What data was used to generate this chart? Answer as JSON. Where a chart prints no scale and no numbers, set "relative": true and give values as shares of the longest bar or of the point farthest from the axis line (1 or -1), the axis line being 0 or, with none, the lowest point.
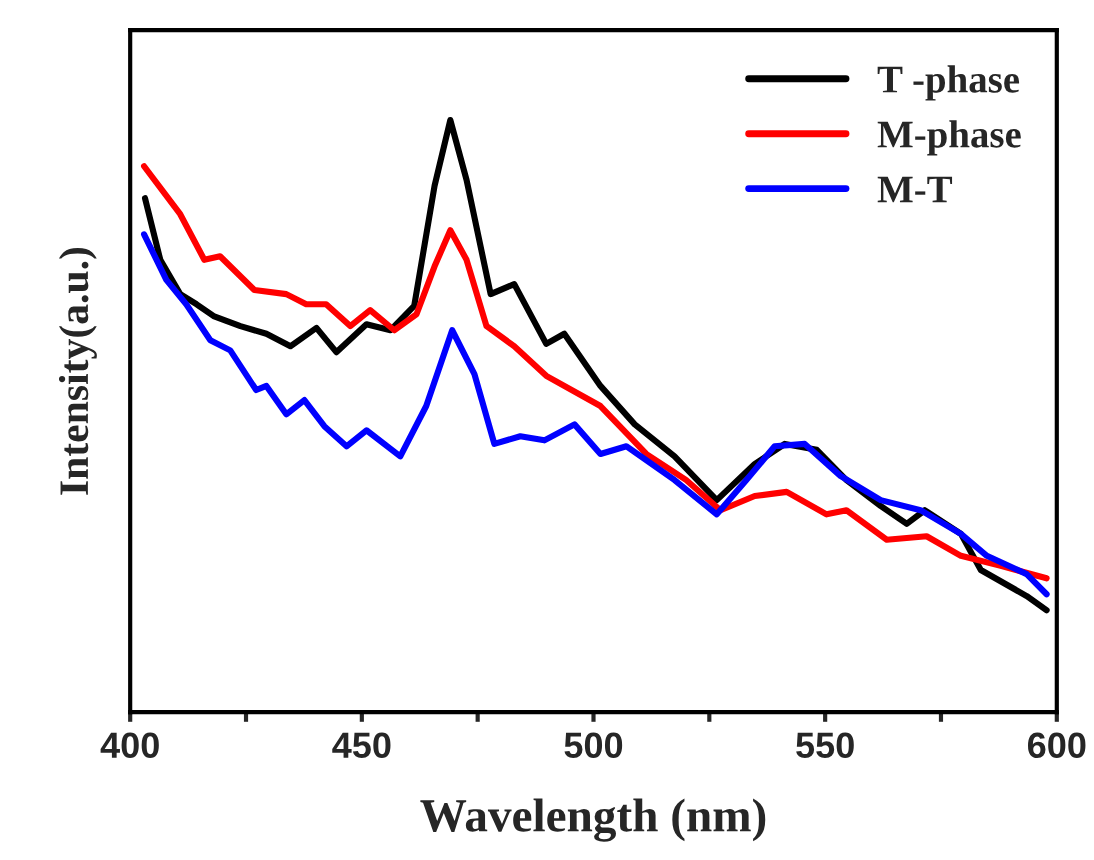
{
  "chart_data": {
    "type": "line",
    "relative": true,
    "xlabel": "Wavelength (nm)",
    "ylabel": "Intensity(a.u.)",
    "xlim": [
      400,
      600
    ],
    "xticks": [
      400,
      {
        "value": 425,
        "label": null
      },
      450,
      {
        "value": 475,
        "label": null
      },
      500,
      {
        "value": 525,
        "label": null
      },
      550,
      {
        "value": 575,
        "label": null
      },
      600
    ],
    "legend": "top right",
    "grid": false,
    "series": [
      {
        "name": "T -phase",
        "color": "#000000",
        "x": [
          403.2,
          406.5,
          410.8,
          414.3,
          418,
          423.8,
          429.4,
          434.6,
          440.2,
          444.5,
          451,
          456.2,
          461.3,
          465.7,
          469.1,
          472.6,
          477.8,
          482.9,
          489.8,
          493.7,
          501.5,
          508.9,
          517.5,
          526.6,
          534.8,
          541.3,
          548.2,
          554.6,
          562,
          567.6,
          571.5,
          579.3,
          583.6,
          593.5,
          597.8
        ],
        "values": [
          0.868,
          0.764,
          0.706,
          0.689,
          0.669,
          0.652,
          0.639,
          0.618,
          0.649,
          0.608,
          0.655,
          0.645,
          0.686,
          0.889,
          1.0,
          0.899,
          0.706,
          0.723,
          0.622,
          0.639,
          0.551,
          0.486,
          0.432,
          0.358,
          0.419,
          0.453,
          0.443,
          0.392,
          0.348,
          0.318,
          0.341,
          0.301,
          0.24,
          0.196,
          0.172
        ]
      },
      {
        "name": "M-phase",
        "color": "#ff0000",
        "x": [
          403,
          410.8,
          416,
          419.4,
          426.8,
          433.7,
          438,
          442.3,
          447.5,
          451.8,
          457,
          461.8,
          465.7,
          469.1,
          472.6,
          476.9,
          482.9,
          489.8,
          501.5,
          511.4,
          520,
          527.4,
          534.8,
          541.7,
          550.3,
          554.6,
          563.3,
          571.9,
          579.3,
          587.9,
          597.8
        ],
        "values": [
          0.922,
          0.841,
          0.764,
          0.77,
          0.713,
          0.706,
          0.689,
          0.689,
          0.652,
          0.679,
          0.645,
          0.672,
          0.753,
          0.814,
          0.764,
          0.652,
          0.618,
          0.568,
          0.517,
          0.436,
          0.392,
          0.341,
          0.365,
          0.372,
          0.334,
          0.341,
          0.291,
          0.297,
          0.264,
          0.247,
          0.226
        ]
      },
      {
        "name": "M-T",
        "color": "#0000ff",
        "x": [
          403,
          407.8,
          412.1,
          417.3,
          421.6,
          427.2,
          429.4,
          433.7,
          437.6,
          441.9,
          446.7,
          451,
          458.3,
          463.9,
          469.5,
          474.3,
          478.6,
          484.2,
          489.4,
          495.9,
          501.5,
          507.1,
          517.5,
          526.6,
          533,
          539.1,
          545.6,
          553.3,
          562,
          570.6,
          579.3,
          584.9,
          593.5,
          597.8
        ],
        "values": [
          0.807,
          0.73,
          0.689,
          0.628,
          0.611,
          0.544,
          0.551,
          0.503,
          0.527,
          0.483,
          0.449,
          0.476,
          0.432,
          0.517,
          0.645,
          0.571,
          0.453,
          0.466,
          0.459,
          0.486,
          0.436,
          0.449,
          0.392,
          0.334,
          0.392,
          0.449,
          0.453,
          0.399,
          0.358,
          0.341,
          0.301,
          0.264,
          0.233,
          0.199
        ]
      }
    ]
  }
}
